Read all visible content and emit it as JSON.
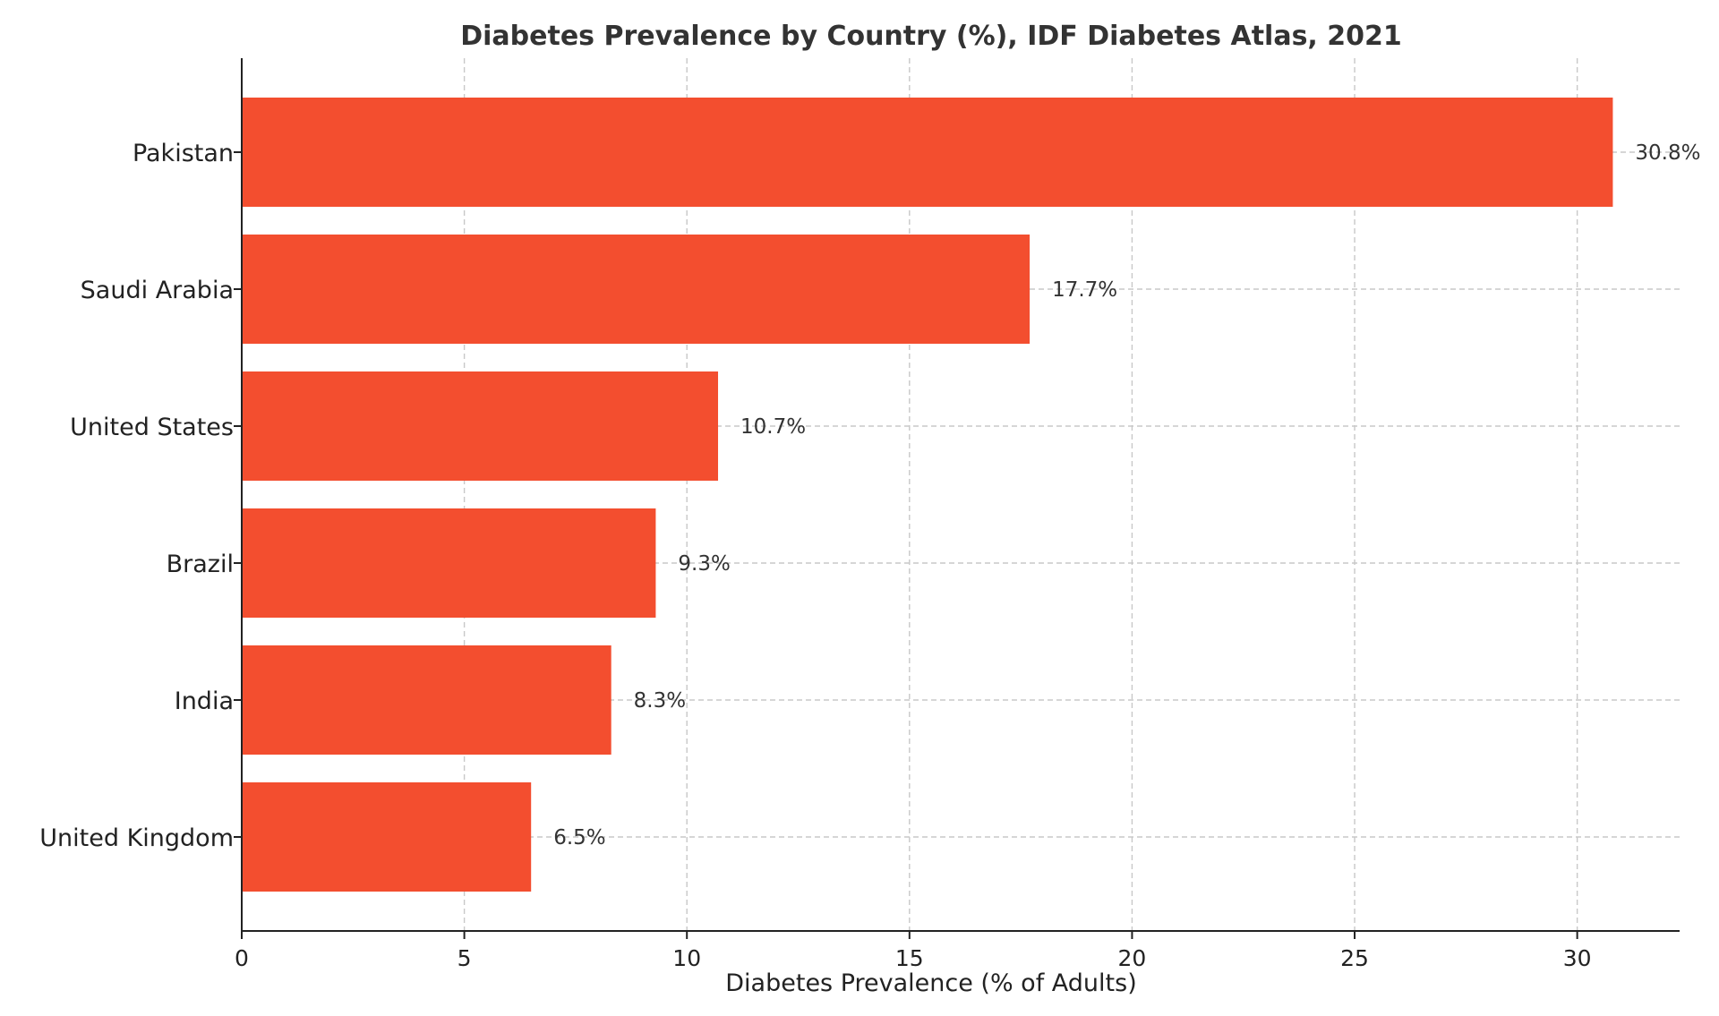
{
  "chart_data": {
    "type": "bar",
    "orientation": "horizontal",
    "title": "Diabetes Prevalence by Country (%), IDF Diabetes Atlas, 2021",
    "xlabel": "Diabetes Prevalence (% of Adults)",
    "ylabel": "",
    "categories": [
      "Pakistan",
      "Saudi Arabia",
      "United States",
      "Brazil",
      "India",
      "United Kingdom"
    ],
    "values": [
      30.8,
      17.7,
      10.7,
      9.3,
      8.3,
      6.5
    ],
    "value_labels": [
      "30.8%",
      "17.7%",
      "10.7%",
      "9.3%",
      "8.3%",
      "6.5%"
    ],
    "xlim": [
      0,
      32.3
    ],
    "xticks": [
      0,
      5,
      10,
      15,
      20,
      25,
      30
    ],
    "xtick_labels": [
      "0",
      "5",
      "10",
      "15",
      "20",
      "25",
      "30"
    ],
    "grid": true,
    "bar_color": "#f34e2f",
    "legend": "none"
  }
}
